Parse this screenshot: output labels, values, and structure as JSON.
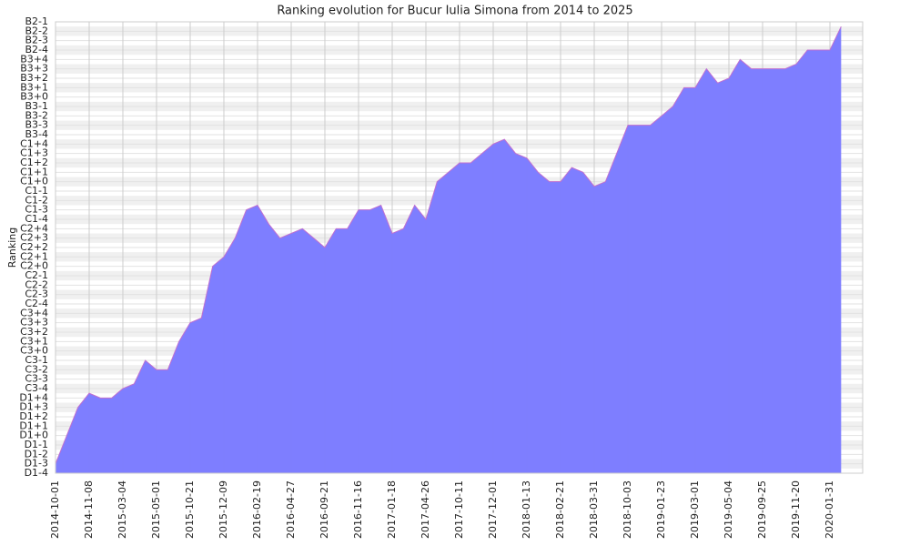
{
  "chart_data": {
    "type": "area",
    "title": "Ranking evolution for Bucur Iulia Simona from 2014 to 2025",
    "y_label": "Ranking",
    "color": "#7b7bff",
    "line_color": "#c070d0",
    "grid": true,
    "categories": [
      "2014-10-01",
      null,
      null,
      "2014-11-08",
      null,
      null,
      "2015-03-04",
      null,
      null,
      "2015-05-01",
      null,
      null,
      "2015-10-21",
      null,
      null,
      "2015-12-09",
      null,
      null,
      "2016-02-19",
      null,
      null,
      "2016-04-27",
      null,
      null,
      "2016-09-21",
      null,
      null,
      "2016-11-16",
      null,
      null,
      "2017-01-18",
      null,
      null,
      "2017-04-26",
      null,
      null,
      "2017-10-11",
      null,
      null,
      "2017-12-01",
      null,
      null,
      "2018-01-13",
      null,
      null,
      "2018-02-21",
      null,
      null,
      "2018-03-31",
      null,
      null,
      "2018-10-03",
      null,
      null,
      "2019-01-23",
      null,
      null,
      "2019-03-01",
      null,
      null,
      "2019-05-04",
      null,
      null,
      "2019-09-25",
      null,
      null,
      "2019-11-20",
      null,
      null,
      "2020-01-31",
      null
    ],
    "values": [
      1,
      4,
      7,
      8.5,
      8,
      8,
      9,
      9.5,
      12,
      11,
      11,
      14,
      16,
      16.5,
      22,
      23,
      25,
      28,
      28.5,
      26.5,
      25,
      25.5,
      26,
      25,
      24,
      26,
      26,
      28,
      28,
      28.5,
      25.5,
      26,
      28.5,
      27,
      31,
      32,
      33,
      33,
      34,
      35,
      35.5,
      34,
      33.5,
      32,
      31,
      31,
      32.5,
      32,
      30.5,
      31,
      34,
      37,
      37,
      37,
      38,
      39,
      41,
      41,
      43,
      41.5,
      42,
      44,
      43,
      43,
      43,
      43,
      43.5,
      45,
      45,
      45,
      47.5
    ],
    "ylim": [
      0,
      48
    ],
    "yticks": [
      {
        "value": 0,
        "label": "D1-4"
      },
      {
        "value": 1,
        "label": "D1-3"
      },
      {
        "value": 2,
        "label": "D1-2"
      },
      {
        "value": 3,
        "label": "D1-1"
      },
      {
        "value": 4,
        "label": "D1+0"
      },
      {
        "value": 5,
        "label": "D1+1"
      },
      {
        "value": 6,
        "label": "D1+2"
      },
      {
        "value": 7,
        "label": "D1+3"
      },
      {
        "value": 8,
        "label": "D1+4"
      },
      {
        "value": 9,
        "label": "C3-4"
      },
      {
        "value": 10,
        "label": "C3-3"
      },
      {
        "value": 11,
        "label": "C3-2"
      },
      {
        "value": 12,
        "label": "C3-1"
      },
      {
        "value": 13,
        "label": "C3+0"
      },
      {
        "value": 14,
        "label": "C3+1"
      },
      {
        "value": 15,
        "label": "C3+2"
      },
      {
        "value": 16,
        "label": "C3+3"
      },
      {
        "value": 17,
        "label": "C3+4"
      },
      {
        "value": 18,
        "label": "C2-4"
      },
      {
        "value": 19,
        "label": "C2-3"
      },
      {
        "value": 20,
        "label": "C2-2"
      },
      {
        "value": 21,
        "label": "C2-1"
      },
      {
        "value": 22,
        "label": "C2+0"
      },
      {
        "value": 23,
        "label": "C2+1"
      },
      {
        "value": 24,
        "label": "C2+2"
      },
      {
        "value": 25,
        "label": "C2+3"
      },
      {
        "value": 26,
        "label": "C2+4"
      },
      {
        "value": 27,
        "label": "C1-4"
      },
      {
        "value": 28,
        "label": "C1-3"
      },
      {
        "value": 29,
        "label": "C1-2"
      },
      {
        "value": 30,
        "label": "C1-1"
      },
      {
        "value": 31,
        "label": "C1+0"
      },
      {
        "value": 32,
        "label": "C1+1"
      },
      {
        "value": 33,
        "label": "C1+2"
      },
      {
        "value": 34,
        "label": "C1+3"
      },
      {
        "value": 35,
        "label": "C1+4"
      },
      {
        "value": 36,
        "label": "B3-4"
      },
      {
        "value": 37,
        "label": "B3-3"
      },
      {
        "value": 38,
        "label": "B3-2"
      },
      {
        "value": 39,
        "label": "B3-1"
      },
      {
        "value": 40,
        "label": "B3+0"
      },
      {
        "value": 41,
        "label": "B3+1"
      },
      {
        "value": 42,
        "label": "B3+2"
      },
      {
        "value": 43,
        "label": "B3+3"
      },
      {
        "value": 44,
        "label": "B3+4"
      },
      {
        "value": 45,
        "label": "B2-4"
      },
      {
        "value": 46,
        "label": "B2-3"
      },
      {
        "value": 47,
        "label": "B2-2"
      },
      {
        "value": 48,
        "label": "B2-1"
      }
    ]
  }
}
